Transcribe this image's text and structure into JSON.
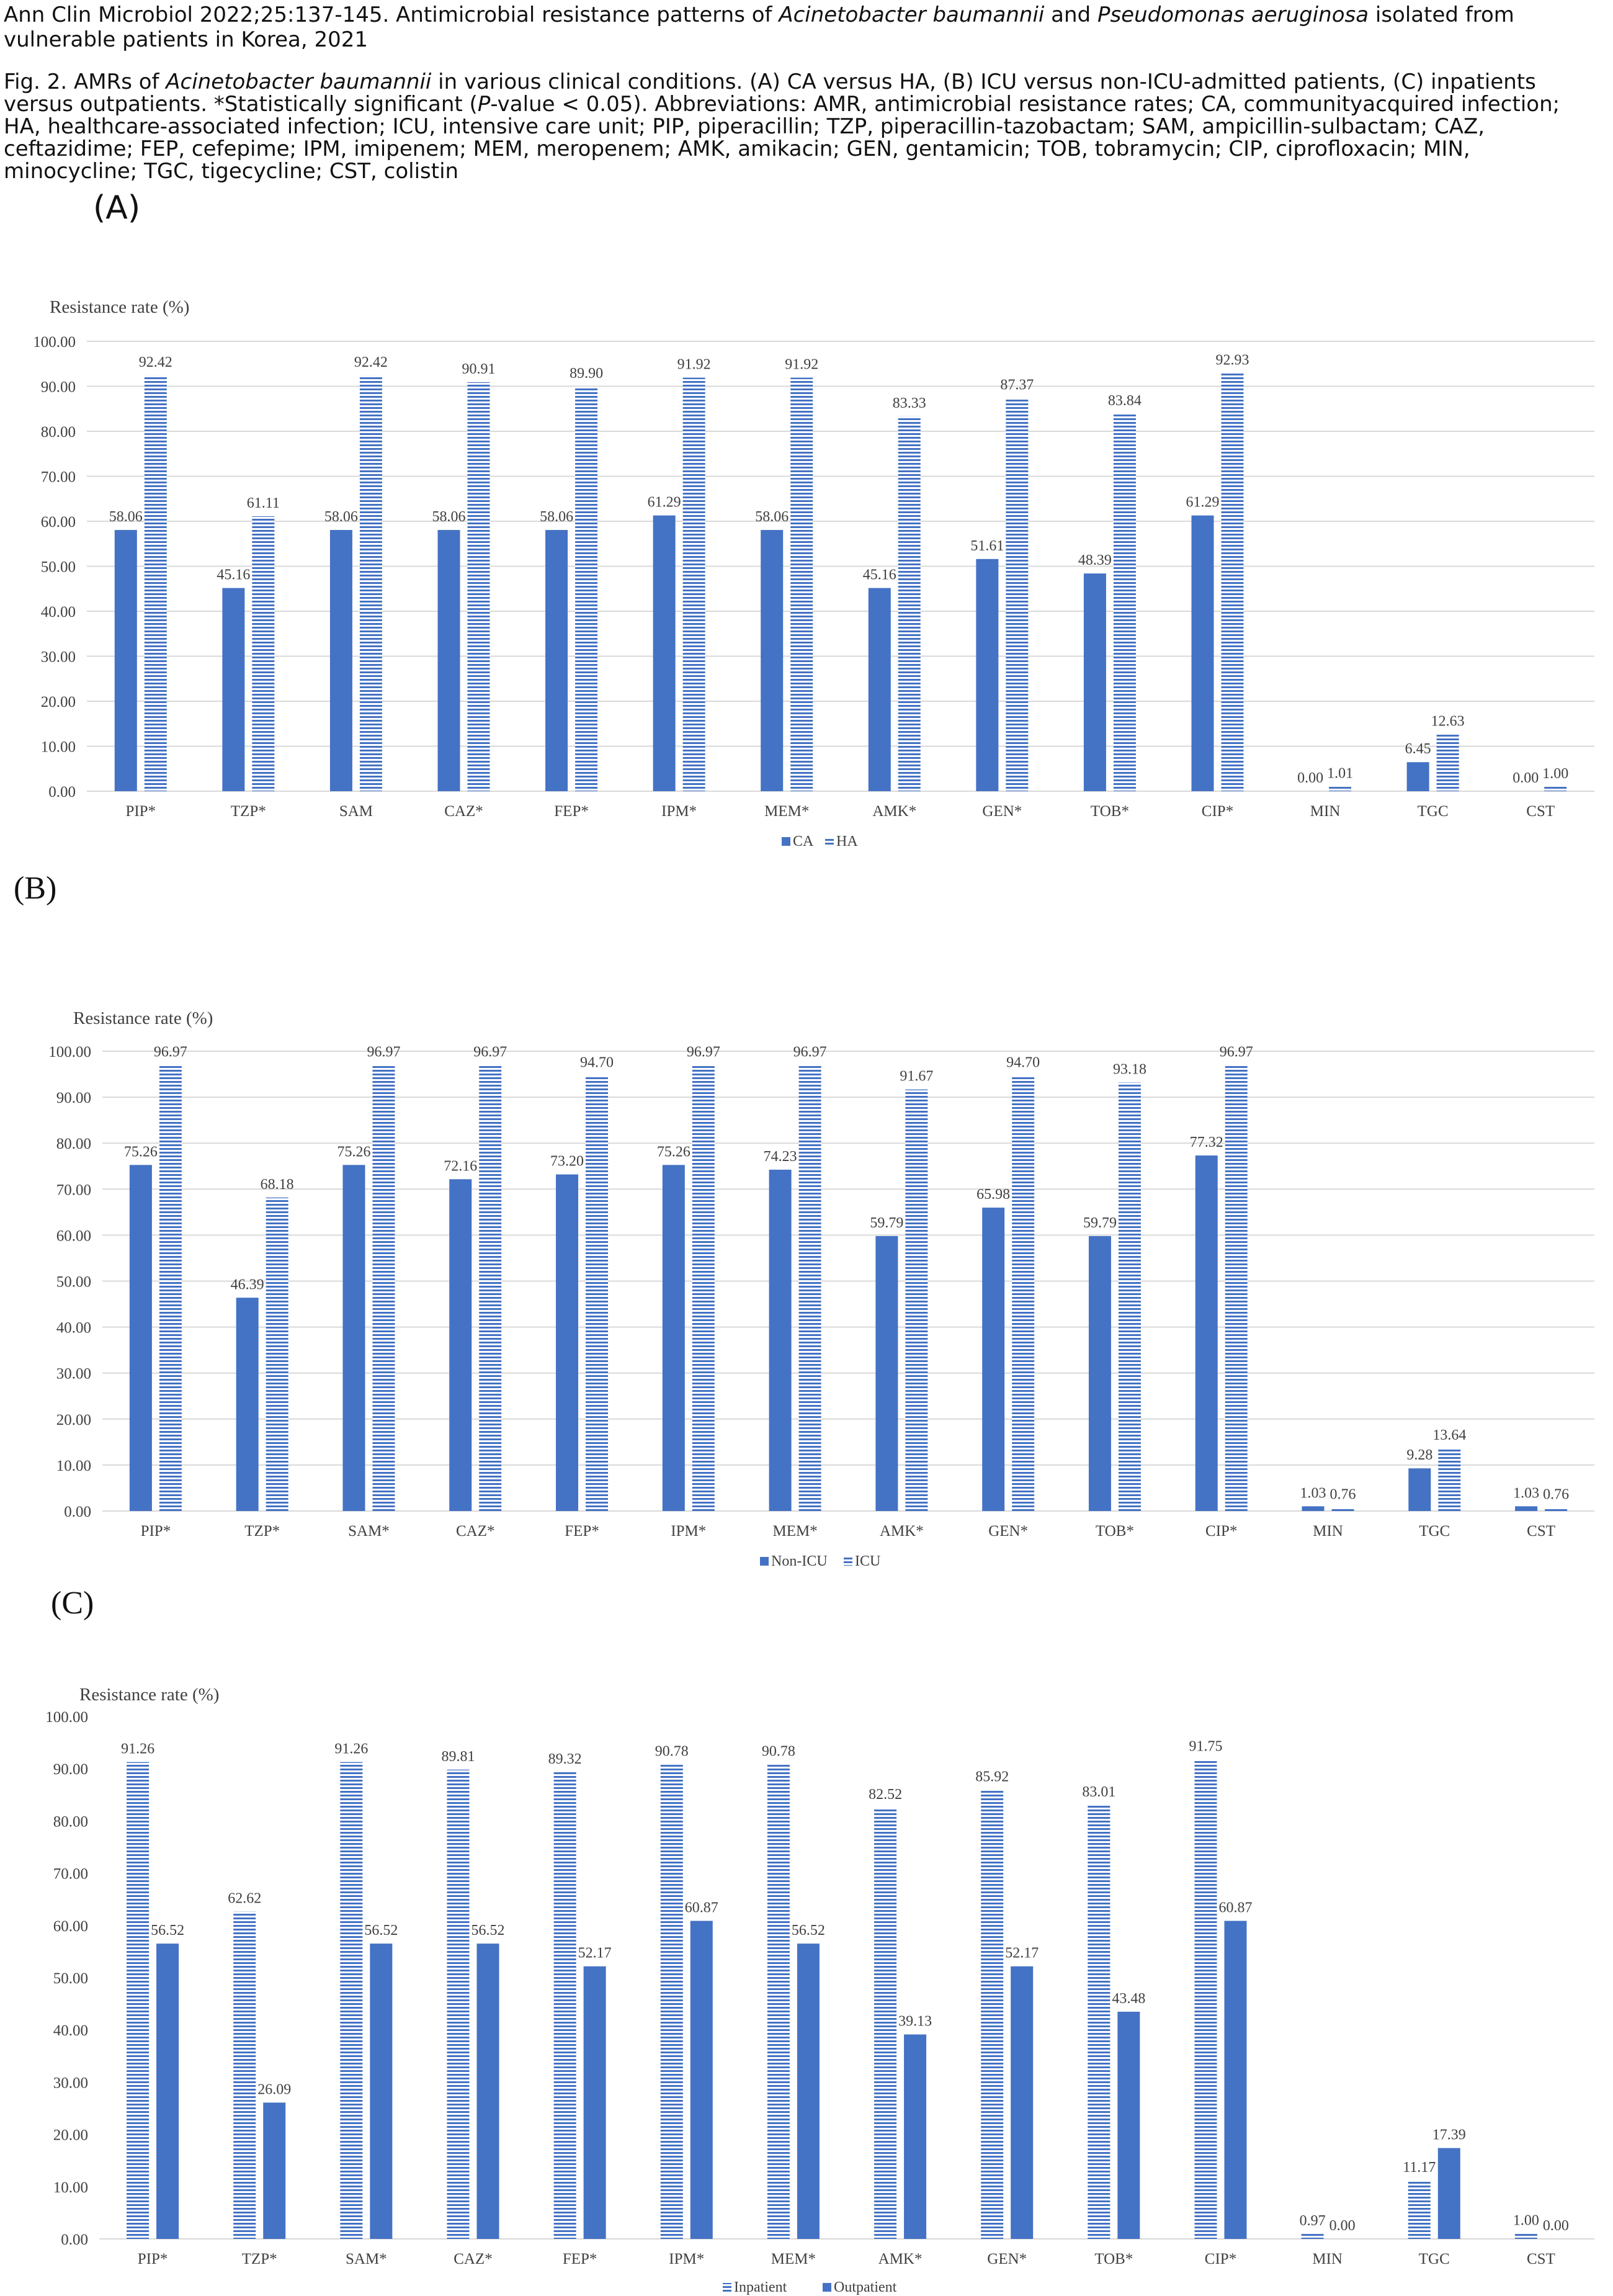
{
  "header": {
    "citation_prefix": "Ann Clin Microbiol 2022;25:137-145. Antimicrobial resistance patterns of ",
    "citation_species1": "Acinetobacter baumannii",
    "citation_and": " and ",
    "citation_species2": "Pseudomonas aeruginosa",
    "citation_suffix": " isolated from vulnerable patients in Korea, 2021",
    "caption_prefix": "Fig. 2. AMRs of ",
    "caption_species": "Acinetobacter baumannii",
    "caption_mid": " in various clinical conditions. (A) CA versus HA, (B) ICU versus non-ICU-admitted patients, (C) inpatients versus outpatients. *Statistically significant (",
    "caption_p": "P",
    "caption_rest": "-value < 0.05). Abbreviations: AMR, antimicrobial resistance rates; CA, communityacquired infection; HA, healthcare-associated infection; ICU, intensive care unit; PIP, piperacillin; TZP, piperacillin-tazobactam; SAM, ampicillin-sulbactam; CAZ, ceftazidime; FEP, cefepime; IPM, imipenem; MEM, meropenem; AMK, amikacin; GEN, gentamicin; TOB, tobramycin; CIP, ciprofloxacin; MIN, minocycline; TGC, tigecycline; CST, colistin"
  },
  "colors": {
    "solid": "#4472c4",
    "striped": "#4472c4",
    "grid": "#d9d9d9",
    "text": "#404040"
  },
  "chart_data": [
    {
      "panel": "(A)",
      "type": "bar",
      "ylabel": "Resistance rate (%)",
      "ylim": [
        0,
        100
      ],
      "yticks": [
        "0.00",
        "10.00",
        "20.00",
        "30.00",
        "40.00",
        "50.00",
        "60.00",
        "70.00",
        "80.00",
        "90.00",
        "100.00"
      ],
      "categories": [
        "PIP*",
        "TZP*",
        "SAM",
        "CAZ*",
        "FEP*",
        "IPM*",
        "MEM*",
        "AMK*",
        "GEN*",
        "TOB*",
        "CIP*",
        "MIN",
        "TGC",
        "CST"
      ],
      "series": [
        {
          "name": "CA",
          "style": "solid",
          "values": [
            58.06,
            45.16,
            58.06,
            58.06,
            58.06,
            61.29,
            58.06,
            45.16,
            51.61,
            48.39,
            61.29,
            0.0,
            6.45,
            0.0
          ]
        },
        {
          "name": "HA",
          "style": "striped",
          "values": [
            92.42,
            61.11,
            92.42,
            90.91,
            89.9,
            91.92,
            91.92,
            83.33,
            87.37,
            83.84,
            92.93,
            1.01,
            12.63,
            1.0
          ]
        }
      ],
      "legend": "bottom",
      "grid": true
    },
    {
      "panel": "(B)",
      "type": "bar",
      "ylabel": "Resistance rate (%)",
      "ylim": [
        0,
        100
      ],
      "yticks": [
        "0.00",
        "10.00",
        "20.00",
        "30.00",
        "40.00",
        "50.00",
        "60.00",
        "70.00",
        "80.00",
        "90.00",
        "100.00"
      ],
      "categories": [
        "PIP*",
        "TZP*",
        "SAM*",
        "CAZ*",
        "FEP*",
        "IPM*",
        "MEM*",
        "AMK*",
        "GEN*",
        "TOB*",
        "CIP*",
        "MIN",
        "TGC",
        "CST"
      ],
      "series": [
        {
          "name": "Non-ICU",
          "style": "solid",
          "values": [
            75.26,
            46.39,
            75.26,
            72.16,
            73.2,
            75.26,
            74.23,
            59.79,
            65.98,
            59.79,
            77.32,
            1.03,
            9.28,
            1.03
          ]
        },
        {
          "name": "ICU",
          "style": "striped",
          "values": [
            96.97,
            68.18,
            96.97,
            96.97,
            94.7,
            96.97,
            96.97,
            91.67,
            94.7,
            93.18,
            96.97,
            0.76,
            13.64,
            0.76
          ]
        }
      ],
      "legend": "bottom",
      "grid": true
    },
    {
      "panel": "(C)",
      "type": "bar",
      "ylabel": "Resistance rate (%)",
      "ylim": [
        0,
        100
      ],
      "yticks": [
        "0.00",
        "10.00",
        "20.00",
        "30.00",
        "40.00",
        "50.00",
        "60.00",
        "70.00",
        "80.00",
        "90.00",
        "100.00"
      ],
      "categories": [
        "PIP*",
        "TZP*",
        "SAM*",
        "CAZ*",
        "FEP*",
        "IPM*",
        "MEM*",
        "AMK*",
        "GEN*",
        "TOB*",
        "CIP*",
        "MIN",
        "TGC",
        "CST"
      ],
      "series": [
        {
          "name": "Inpatient",
          "style": "striped",
          "values": [
            91.26,
            62.62,
            91.26,
            89.81,
            89.32,
            90.78,
            90.78,
            82.52,
            85.92,
            83.01,
            91.75,
            0.97,
            11.17,
            1.0
          ]
        },
        {
          "name": "Outpatient",
          "style": "solid",
          "values": [
            56.52,
            26.09,
            56.52,
            56.52,
            52.17,
            60.87,
            56.52,
            39.13,
            52.17,
            43.48,
            60.87,
            0.0,
            17.39,
            0.0
          ]
        }
      ],
      "legend": "bottom",
      "grid": false
    }
  ]
}
